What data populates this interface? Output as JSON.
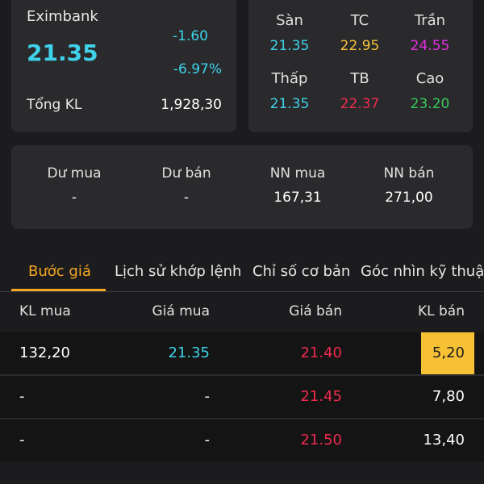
{
  "summary": {
    "stock_name": "Eximbank",
    "current_price": "21.35",
    "change_value": "-1.60",
    "change_percent": "-6.97%",
    "volume_label": "Tổng KL",
    "volume_value": "1,928,30"
  },
  "price_ref": {
    "floor": {
      "label": "Sàn",
      "value": "21.35"
    },
    "reference": {
      "label": "TC",
      "value": "22.95"
    },
    "ceiling": {
      "label": "Trần",
      "value": "24.55"
    },
    "low": {
      "label": "Thấp",
      "value": "21.35"
    },
    "average": {
      "label": "TB",
      "value": "22.37"
    },
    "high": {
      "label": "Cao",
      "value": "23.20"
    }
  },
  "flow": {
    "buy_surplus": {
      "label": "Dư mua",
      "value": "-"
    },
    "sell_surplus": {
      "label": "Dư bán",
      "value": "-"
    },
    "foreign_buy": {
      "label": "NN mua",
      "value": "167,31"
    },
    "foreign_sell": {
      "label": "NN bán",
      "value": "271,00"
    }
  },
  "tabs": [
    {
      "label": "Bước giá",
      "active": true
    },
    {
      "label": "Lịch sử khớp lệnh",
      "active": false
    },
    {
      "label": "Chỉ số cơ bản",
      "active": false
    },
    {
      "label": "Góc nhìn kỹ thuật",
      "active": false
    }
  ],
  "order_book": {
    "headers": {
      "buy_volume": "KL mua",
      "buy_price": "Giá mua",
      "sell_price": "Giá bán",
      "sell_volume": "KL bán"
    },
    "rows": [
      {
        "buy_volume": "132,20",
        "buy_price": "21.35",
        "sell_price": "21.40",
        "sell_volume": "5,20"
      },
      {
        "buy_volume": "-",
        "buy_price": "-",
        "sell_price": "21.45",
        "sell_volume": "7,80"
      },
      {
        "buy_volume": "-",
        "buy_price": "-",
        "sell_price": "21.50",
        "sell_volume": "13,40"
      }
    ]
  },
  "colors": {
    "up_cyan": "#3fd2ea",
    "reference_yellow": "#f5c23a",
    "ceiling_magenta": "#e22fe0",
    "down_red": "#ef2a4e",
    "high_green": "#37c95d",
    "accent_orange": "#f5a623",
    "highlight_yellow": "#f7c136"
  }
}
